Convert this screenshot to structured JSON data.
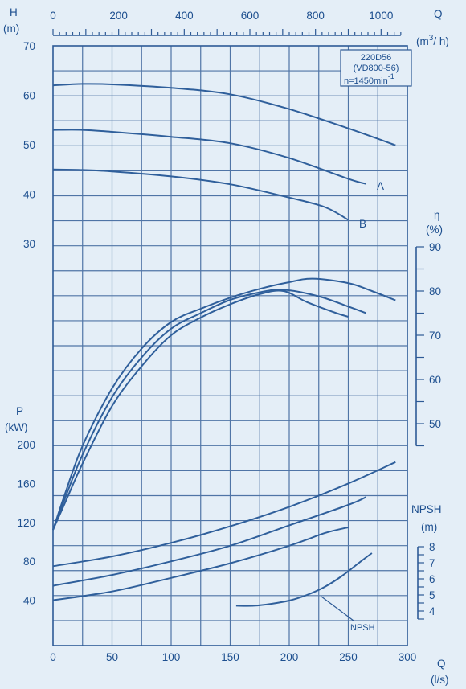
{
  "colors": {
    "background": "#e4eef7",
    "ink": "#1d4f8f",
    "curve": "#2f5f9b"
  },
  "chart_data": {
    "type": "line",
    "info_box": {
      "model": "220D56",
      "variant": "(VD800-56)",
      "speed_prefix": "n=1450min",
      "speed_sup": "-1"
    },
    "q_ls_axis": {
      "label_letter": "Q",
      "label_unit": "(l/s)",
      "range": [
        0,
        300
      ],
      "ticks": [
        "0",
        "50",
        "100",
        "150",
        "200",
        "250",
        "300"
      ]
    },
    "q_m3h_axis": {
      "label_letter": "Q",
      "label_unit_pre": "(m",
      "label_unit_sup": "3",
      "label_unit_post": "/ h)",
      "range": [
        0,
        1060
      ],
      "ticks": [
        "0",
        "200",
        "400",
        "600",
        "800",
        "1000"
      ]
    },
    "head": {
      "label_letter": "H",
      "label_unit": "(m)",
      "range": [
        30,
        70
      ],
      "ticks": [
        "30",
        "40",
        "50",
        "60",
        "70"
      ],
      "series": [
        {
          "name": "",
          "x": [
            0,
            25,
            50,
            100,
            150,
            200,
            250,
            290
          ],
          "y": [
            62,
            62.3,
            62.2,
            61.5,
            60.2,
            57.2,
            53.3,
            49.9
          ]
        },
        {
          "name": "A",
          "x": [
            0,
            25,
            50,
            100,
            150,
            200,
            250,
            265
          ],
          "y": [
            53,
            53,
            52.6,
            51.6,
            50.3,
            47.3,
            43.1,
            42.1
          ]
        },
        {
          "name": "B",
          "x": [
            0,
            25,
            50,
            100,
            150,
            200,
            230,
            250
          ],
          "y": [
            45,
            44.9,
            44.6,
            43.6,
            42,
            39.3,
            37.4,
            34.8
          ]
        }
      ]
    },
    "efficiency": {
      "label_letter": "η",
      "label_unit": "(%)",
      "range": [
        45,
        90
      ],
      "ticks": [
        "50",
        "60",
        "70",
        "80",
        "90"
      ],
      "series": [
        {
          "name": "",
          "x": [
            0,
            10,
            25,
            50,
            75,
            100,
            125,
            150,
            175,
            200,
            220,
            250,
            270,
            290
          ],
          "y": [
            26,
            34,
            45,
            58,
            67,
            73,
            76,
            78.5,
            80.5,
            82,
            82.8,
            81.8,
            80,
            77.9
          ]
        },
        {
          "name": "",
          "x": [
            0,
            10,
            25,
            50,
            75,
            100,
            125,
            150,
            175,
            195,
            225,
            250,
            265
          ],
          "y": [
            26,
            33,
            43,
            56,
            65,
            71.5,
            75,
            78,
            79.7,
            80.3,
            78.8,
            76.5,
            75
          ]
        },
        {
          "name": "",
          "x": [
            0,
            10,
            25,
            50,
            75,
            100,
            125,
            150,
            175,
            195,
            215,
            240,
            250
          ],
          "y": [
            26,
            32,
            41,
            54,
            63,
            70,
            74,
            77,
            79.3,
            80,
            77.5,
            75,
            74.2
          ]
        }
      ]
    },
    "power": {
      "label_letter": "P",
      "label_unit": "(kW)",
      "range": [
        20,
        200
      ],
      "ticks": [
        "40",
        "80",
        "120",
        "160",
        "200"
      ],
      "series": [
        {
          "name": "",
          "x": [
            0,
            50,
            100,
            150,
            200,
            250,
            290
          ],
          "y": [
            75,
            85,
            99,
            116,
            136,
            160,
            182
          ]
        },
        {
          "name": "",
          "x": [
            0,
            50,
            100,
            150,
            200,
            250,
            265
          ],
          "y": [
            55,
            66,
            80,
            96,
            117,
            138,
            146
          ]
        },
        {
          "name": "",
          "x": [
            0,
            50,
            100,
            150,
            200,
            230,
            250
          ],
          "y": [
            40,
            49,
            63,
            78,
            96,
            109,
            115
          ]
        }
      ]
    },
    "npsh": {
      "label_letter": "NPSH",
      "label_unit": "(m)",
      "range": [
        3.5,
        8
      ],
      "ticks": [
        "4",
        "5",
        "6",
        "7",
        "8"
      ],
      "annotation": "NPSH",
      "series": [
        {
          "name": "",
          "x": [
            155,
            170,
            185,
            200,
            215,
            230,
            245,
            260,
            270
          ],
          "y": [
            4.33,
            4.33,
            4.45,
            4.65,
            5,
            5.5,
            6.2,
            7.05,
            7.6
          ]
        }
      ]
    },
    "grid": true
  }
}
